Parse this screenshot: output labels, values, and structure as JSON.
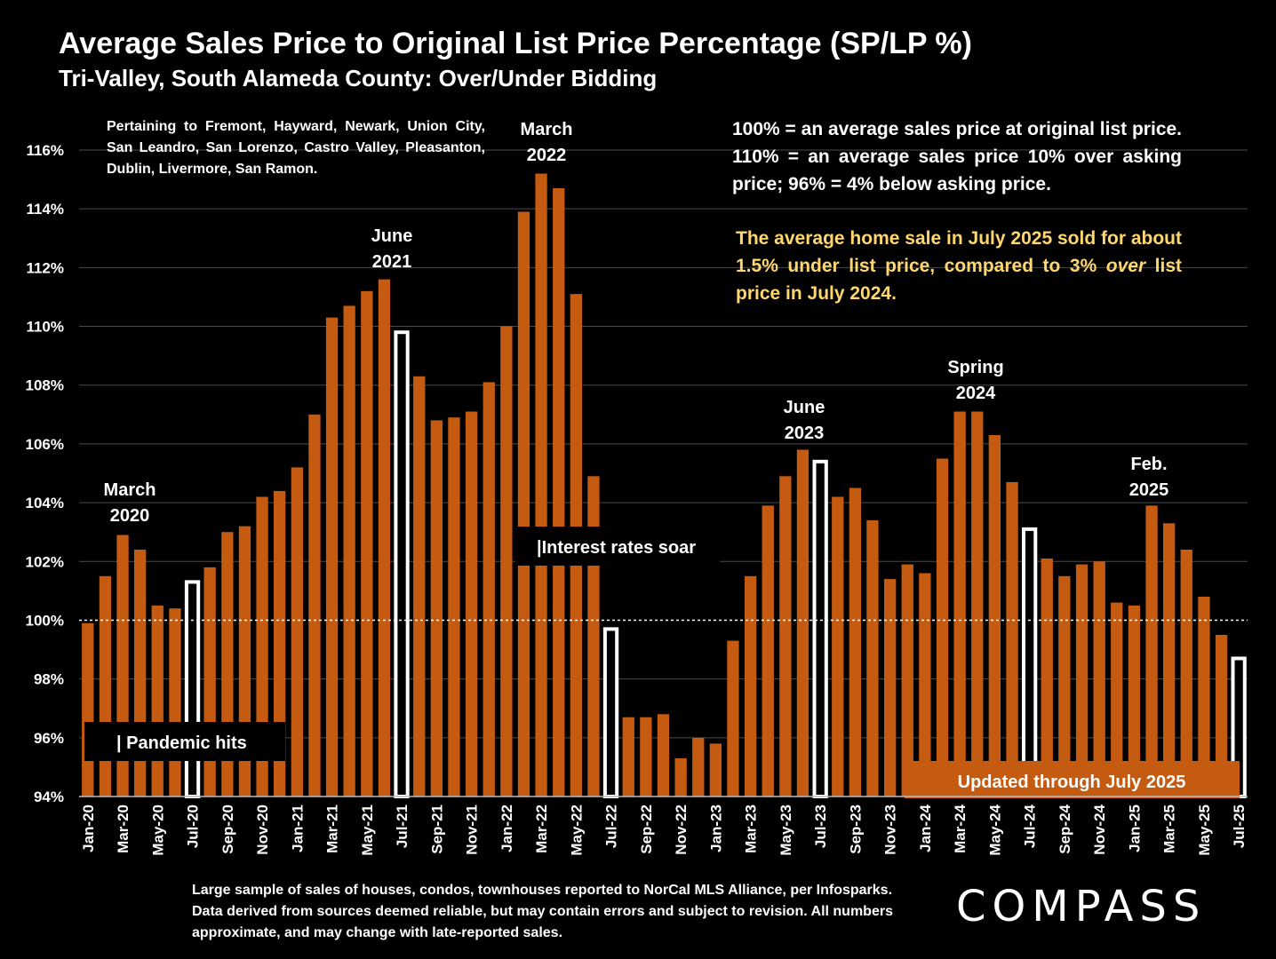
{
  "header": {
    "title": "Average Sales Price to Original List Price Percentage (SP/LP %)",
    "subtitle": "Tri-Valley, South Alameda County:  Over/Under Bidding"
  },
  "notes": {
    "cities": "Pertaining to Fremont, Hayward, Newark, Union City, San Leandro, San Lorenzo, Castro Valley, Pleasanton, Dublin, Livermore, San Ramon.",
    "definition": "100% = an average sales price at original list price. 110% = an average sales price 10% over asking price; 96% = 4% below asking price.",
    "highlight_pre": "The average home sale in July 2025 sold for about 1.5% under list price, compared to 3% ",
    "highlight_em": "over",
    "highlight_post": " list price in July 2024."
  },
  "annotations": {
    "march2020": [
      "March",
      "2020"
    ],
    "june2021": [
      "June",
      "2021"
    ],
    "march2022": [
      "March",
      "2022"
    ],
    "june2023": [
      "June",
      "2023"
    ],
    "spring2024": [
      "Spring",
      "2024"
    ],
    "feb2025": [
      "Feb.",
      "2025"
    ],
    "pandemic": "| Pandemic hits",
    "rates": "|Interest rates soar",
    "updated": "Updated through July 2025"
  },
  "footer": "Large sample of sales of houses, condos, townhouses reported to NorCal MLS Alliance, per Infosparks. Data derived from sources deemed reliable, but may contain errors and subject to revision. All numbers approximate, and may change with late-reported sales.",
  "logo": "COMPASS",
  "colors": {
    "bar": "#c55a11",
    "highlight_bar": "#ffffff",
    "highlight_text": "#ffd76e",
    "background": "#000000"
  },
  "chart_data": {
    "type": "bar",
    "ylim": [
      94,
      116
    ],
    "yticks": [
      94,
      96,
      98,
      100,
      102,
      104,
      106,
      108,
      110,
      112,
      114,
      116
    ],
    "ytick_labels": [
      "94%",
      "96%",
      "98%",
      "100%",
      "102%",
      "104%",
      "106%",
      "108%",
      "110%",
      "112%",
      "114%",
      "116%"
    ],
    "reference_line": 100,
    "grid": true,
    "categories": [
      "Jan-20",
      "Feb-20",
      "Mar-20",
      "Apr-20",
      "May-20",
      "Jun-20",
      "Jul-20",
      "Aug-20",
      "Sep-20",
      "Oct-20",
      "Nov-20",
      "Dec-20",
      "Jan-21",
      "Feb-21",
      "Mar-21",
      "Apr-21",
      "May-21",
      "Jun-21",
      "Jul-21",
      "Aug-21",
      "Sep-21",
      "Oct-21",
      "Nov-21",
      "Dec-21",
      "Jan-22",
      "Feb-22",
      "Mar-22",
      "Apr-22",
      "May-22",
      "Jun-22",
      "Jul-22",
      "Aug-22",
      "Sep-22",
      "Oct-22",
      "Nov-22",
      "Dec-22",
      "Jan-23",
      "Feb-23",
      "Mar-23",
      "Apr-23",
      "May-23",
      "Jun-23",
      "Jul-23",
      "Aug-23",
      "Sep-23",
      "Oct-23",
      "Nov-23",
      "Dec-23",
      "Jan-24",
      "Feb-24",
      "Mar-24",
      "Apr-24",
      "May-24",
      "Jun-24",
      "Jul-24",
      "Aug-24",
      "Sep-24",
      "Oct-24",
      "Nov-24",
      "Dec-24",
      "Jan-25",
      "Feb-25",
      "Mar-25",
      "Apr-25",
      "May-25",
      "Jun-25",
      "Jul-25"
    ],
    "tick_labels": [
      "Jan-20",
      "Mar-20",
      "May-20",
      "Jul-20",
      "Sep-20",
      "Nov-20",
      "Jan-21",
      "Mar-21",
      "May-21",
      "Jul-21",
      "Sep-21",
      "Nov-21",
      "Jan-22",
      "Mar-22",
      "May-22",
      "Jul-22",
      "Sep-22",
      "Nov-22",
      "Jan-23",
      "Mar-23",
      "May-23",
      "Jul-23",
      "Sep-23",
      "Nov-23",
      "Jan-24",
      "Mar-24",
      "May-24",
      "Jul-24",
      "Sep-24",
      "Nov-24",
      "Jan-25",
      "Mar-25",
      "May-25",
      "Jul-25"
    ],
    "values": [
      99.9,
      101.5,
      102.9,
      102.4,
      100.5,
      100.4,
      101.3,
      101.8,
      103.0,
      103.2,
      104.2,
      104.4,
      105.2,
      107.0,
      110.3,
      110.7,
      111.2,
      111.6,
      109.8,
      108.3,
      106.8,
      106.9,
      107.1,
      108.1,
      110.0,
      113.9,
      115.2,
      114.7,
      111.1,
      104.9,
      99.7,
      96.7,
      96.7,
      96.8,
      95.3,
      96.0,
      95.8,
      99.3,
      101.5,
      103.9,
      104.9,
      105.8,
      105.4,
      104.2,
      104.5,
      103.4,
      101.4,
      101.9,
      101.6,
      105.5,
      107.1,
      107.1,
      106.3,
      104.7,
      103.1,
      102.1,
      101.5,
      101.9,
      102.0,
      100.6,
      100.5,
      103.9,
      103.3,
      102.4,
      100.8,
      99.5,
      98.7
    ],
    "highlighted": [
      "Jul-20",
      "Jul-21",
      "Jul-22",
      "Jul-23",
      "Jul-24",
      "Jul-25"
    ]
  }
}
